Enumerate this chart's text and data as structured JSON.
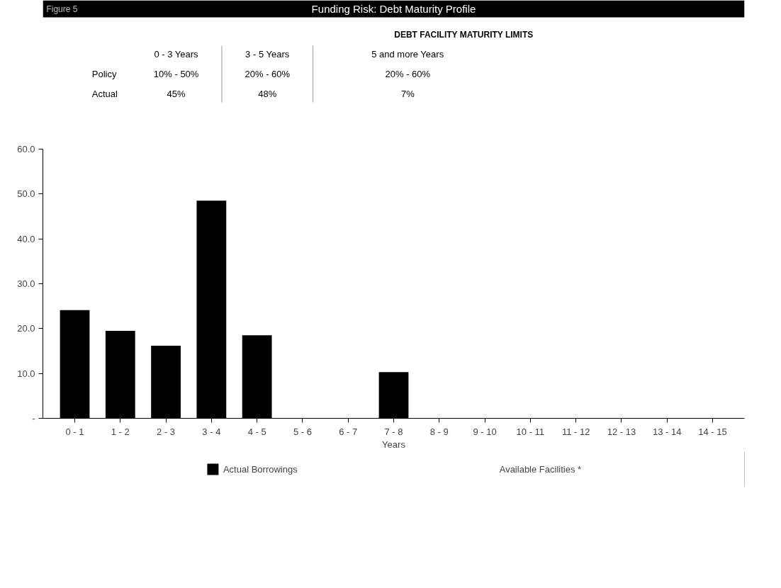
{
  "chart_data": {
    "type": "bar",
    "title": "Funding Risk: Debt Maturity Profile",
    "subtitle": "DEBT FACILITY MATURITY LIMITS",
    "annotations": [
      "Figure 5",
      "0 - 3 Years",
      "3 - 5 Years",
      "5 and more Years",
      "Policy",
      "10% - 50%",
      "20% - 60%",
      "20% - 60%",
      "Actual",
      "45%",
      "48%",
      "7%"
    ],
    "categories": [
      "0 - 1",
      "1 - 2",
      "2 - 3",
      "3 - 4",
      "4 - 5",
      "5 - 6",
      "6 - 7",
      "7 - 8",
      "8 - 9",
      "9 - 10",
      "10 - 11",
      "11 - 12",
      "12 - 13",
      "13 - 14",
      "14 - 15"
    ],
    "series": [
      {
        "name": "Actual Borrowings",
        "color": "#000000",
        "values": [
          24.1,
          19.5,
          16.2,
          48.5,
          18.5,
          0,
          0,
          10.3,
          0,
          0,
          0,
          0,
          0,
          0,
          0
        ]
      },
      {
        "name": "Available Facilities *",
        "values": [
          null,
          null,
          null,
          null,
          null,
          null,
          null,
          null,
          null,
          null,
          null,
          null,
          null,
          null,
          null
        ]
      }
    ],
    "xlabel": "Years",
    "ylim": [
      0,
      60
    ],
    "yticks": [
      {
        "value": 0,
        "label": "-"
      },
      {
        "value": 10,
        "label": "10.0"
      },
      {
        "value": 20,
        "label": "20.0"
      },
      {
        "value": 30,
        "label": "30.0"
      },
      {
        "value": 40,
        "label": "40.0"
      },
      {
        "value": 50,
        "label": "50.0"
      },
      {
        "value": 60,
        "label": "60.0"
      }
    ],
    "grid": false,
    "legend": "bottom"
  }
}
